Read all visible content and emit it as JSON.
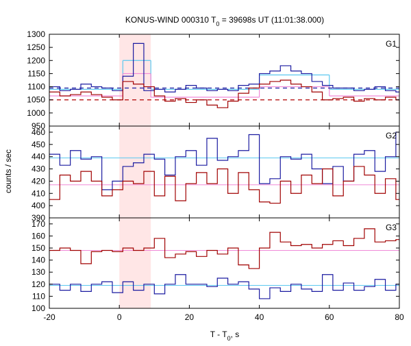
{
  "chart_data": {
    "type": "line",
    "title_parts": [
      "KONUS-WIND 000310 T",
      "0",
      " = 39698s UT (11:01:38.000)"
    ],
    "xlabel_parts": [
      "T - T",
      "0",
      ", s"
    ],
    "ylabel": "counts / sec",
    "xlim": [
      -20,
      80
    ],
    "xticks": [
      -20,
      0,
      20,
      40,
      60,
      80
    ],
    "grid": false,
    "highlight_interval": {
      "x_start": 0,
      "x_end": 9,
      "color": "#ffd6d6"
    },
    "colors": {
      "blue": "#1a1aa0",
      "red": "#a00000",
      "cyan": "#5ac8f0",
      "pink": "#f08ad8",
      "dashed_blue": "#1a1aa0",
      "dashed_red": "#b00000"
    },
    "panels": [
      {
        "label": "G1",
        "ylim": [
          950,
          1300
        ],
        "yticks": [
          950,
          1000,
          1050,
          1100,
          1150,
          1200,
          1250,
          1300
        ],
        "bin_edges": [
          -20,
          -17,
          -14,
          -11,
          -8,
          -5,
          -2,
          1,
          4,
          7,
          10,
          13,
          16,
          19,
          22,
          25,
          28,
          31,
          34,
          37,
          40,
          43,
          46,
          49,
          52,
          55,
          58,
          61,
          64,
          67,
          70,
          73,
          76,
          79,
          80
        ],
        "series": [
          {
            "color_key": "blue",
            "values": [
              1100,
              1085,
              1090,
              1110,
              1100,
              1095,
              1085,
              1140,
              1265,
              1085,
              1090,
              1080,
              1090,
              1105,
              1095,
              1085,
              1090,
              1085,
              1105,
              1110,
              1150,
              1160,
              1180,
              1160,
              1150,
              1120,
              1105,
              1095,
              1095,
              1085,
              1090,
              1100,
              1085,
              1080
            ]
          },
          {
            "color_key": "red",
            "values": [
              1080,
              1065,
              1070,
              1080,
              1070,
              1060,
              1050,
              1120,
              1110,
              1100,
              1065,
              1045,
              1055,
              1040,
              1050,
              1030,
              1020,
              1045,
              1075,
              1095,
              1110,
              1120,
              1125,
              1110,
              1100,
              1080,
              1050,
              1055,
              1060,
              1045,
              1055,
              1050,
              1060,
              1050
            ]
          }
        ],
        "boxes": [
          {
            "color_key": "cyan",
            "x_start": -20,
            "x_end": 1,
            "value": 1090
          },
          {
            "color_key": "cyan",
            "x_start": 1,
            "x_end": 9,
            "value": 1200
          },
          {
            "color_key": "cyan",
            "x_start": 9,
            "x_end": 40,
            "value": 1090
          },
          {
            "color_key": "cyan",
            "x_start": 40,
            "x_end": 60,
            "value": 1145
          },
          {
            "color_key": "cyan",
            "x_start": 60,
            "x_end": 80,
            "value": 1090
          },
          {
            "color_key": "pink",
            "x_start": -20,
            "x_end": 1,
            "value": 1065
          },
          {
            "color_key": "pink",
            "x_start": 1,
            "x_end": 9,
            "value": 1150
          },
          {
            "color_key": "pink",
            "x_start": 9,
            "x_end": 40,
            "value": 1060
          },
          {
            "color_key": "pink",
            "x_start": 40,
            "x_end": 60,
            "value": 1100
          },
          {
            "color_key": "pink",
            "x_start": 60,
            "x_end": 80,
            "value": 1065
          }
        ],
        "dashed": [
          {
            "color_key": "dashed_blue",
            "value": 1095
          },
          {
            "color_key": "dashed_red",
            "value": 1050
          }
        ]
      },
      {
        "label": "G2",
        "ylim": [
          390,
          465
        ],
        "yticks": [
          390,
          400,
          410,
          420,
          430,
          440,
          450,
          460
        ],
        "bin_edges": [
          -20,
          -17,
          -14,
          -11,
          -8,
          -5,
          -2,
          1,
          4,
          7,
          10,
          13,
          16,
          19,
          22,
          25,
          28,
          31,
          34,
          37,
          40,
          43,
          46,
          49,
          52,
          55,
          58,
          61,
          64,
          67,
          70,
          73,
          76,
          79,
          80
        ],
        "series": [
          {
            "color_key": "blue",
            "values": [
              442,
              433,
              445,
              438,
              440,
              413,
              420,
              432,
              435,
              442,
              438,
              425,
              440,
              445,
              433,
              455,
              437,
              440,
              445,
              458,
              418,
              422,
              440,
              438,
              442,
              430,
              418,
              432,
              420,
              442,
              445,
              428,
              440,
              460
            ]
          },
          {
            "color_key": "red",
            "values": [
              405,
              425,
              420,
              428,
              420,
              408,
              413,
              420,
              418,
              428,
              408,
              424,
              404,
              418,
              427,
              418,
              430,
              410,
              427,
              413,
              403,
              402,
              420,
              410,
              425,
              418,
              430,
              408,
              420,
              432,
              425,
              410,
              422,
              405
            ]
          }
        ],
        "hlines": [
          {
            "color_key": "cyan",
            "value": 439
          },
          {
            "color_key": "pink",
            "value": 417
          }
        ]
      },
      {
        "label": "G3",
        "ylim": [
          100,
          175
        ],
        "yticks": [
          100,
          110,
          120,
          130,
          140,
          150,
          160,
          170
        ],
        "bin_edges": [
          -20,
          -17,
          -14,
          -11,
          -8,
          -5,
          -2,
          1,
          4,
          7,
          10,
          13,
          16,
          19,
          22,
          25,
          28,
          31,
          34,
          37,
          40,
          43,
          46,
          49,
          52,
          55,
          58,
          61,
          64,
          67,
          70,
          73,
          76,
          79,
          80
        ],
        "series": [
          {
            "color_key": "red",
            "values": [
              148,
              150,
              148,
              137,
              147,
              148,
              147,
              150,
              148,
              150,
              158,
              142,
              145,
              147,
              143,
              148,
              145,
              150,
              136,
              133,
              150,
              163,
              155,
              152,
              153,
              150,
              153,
              156,
              152,
              158,
              166,
              155,
              156,
              157
            ]
          },
          {
            "color_key": "blue",
            "values": [
              120,
              115,
              120,
              114,
              120,
              122,
              113,
              122,
              115,
              120,
              112,
              120,
              128,
              120,
              120,
              118,
              125,
              120,
              122,
              116,
              108,
              117,
              114,
              120,
              116,
              114,
              128,
              115,
              121,
              115,
              118,
              124,
              115,
              120
            ]
          }
        ],
        "hlines": [
          {
            "color_key": "cyan",
            "value": 119
          },
          {
            "color_key": "pink",
            "value": 148
          }
        ]
      }
    ]
  }
}
